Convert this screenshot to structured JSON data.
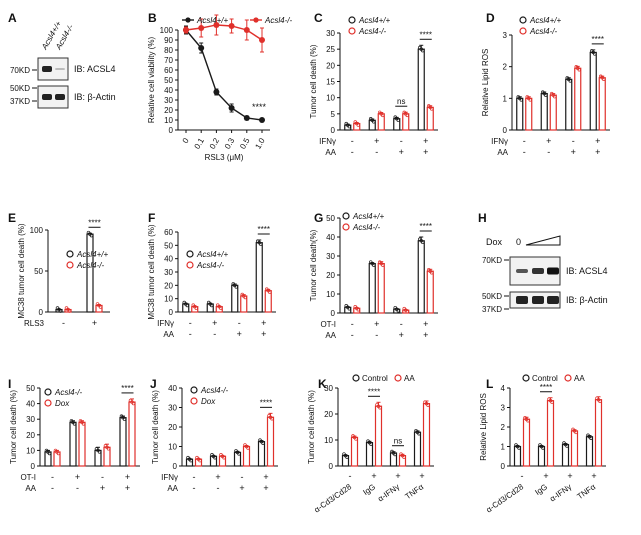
{
  "colors": {
    "black": "#1a1a1a",
    "red": "#e0302b",
    "gray": "#666666"
  },
  "figure": {
    "panels": {
      "A": {
        "letter": "A",
        "lanes": [
          "Acsl4+/+",
          "Acsl4-/-"
        ],
        "markers": [
          "70KD",
          "50KD",
          "37KD"
        ],
        "blots": [
          "IB: ACSL4",
          "IB: β-Actin"
        ]
      },
      "H": {
        "letter": "H",
        "dox_label": "Dox",
        "dox_zero": "0",
        "markers": [
          "70KD",
          "50KD",
          "37KD"
        ],
        "blots": [
          "IB: ACSL4",
          "IB: β-Actin"
        ]
      }
    }
  },
  "chart_data": [
    {
      "id": "B",
      "letter": "B",
      "type": "line",
      "ylabel": "Relative cell viability (%)",
      "xlabel": "RSL3 (μM)",
      "ylim": [
        0,
        100
      ],
      "yticks": [
        0,
        10,
        20,
        30,
        40,
        50,
        60,
        70,
        80,
        90,
        100
      ],
      "categories": [
        "0",
        "0.1",
        "0.2",
        "0.3",
        "0.5",
        "1.0"
      ],
      "legend": [
        "Acsl4+/+",
        "Acsl4-/-"
      ],
      "series": [
        {
          "name": "Acsl4+/+",
          "color": "black",
          "values": [
            100,
            82,
            38,
            22,
            12,
            10
          ],
          "err": [
            4,
            5,
            3,
            4,
            2,
            1
          ]
        },
        {
          "name": "Acsl4-/-",
          "color": "red",
          "values": [
            100,
            102,
            105,
            104,
            100,
            90
          ],
          "err": [
            3,
            9,
            10,
            7,
            10,
            12
          ]
        }
      ],
      "sig": "****"
    },
    {
      "id": "C",
      "letter": "C",
      "type": "bar",
      "ylabel": "Tumor cell death (%)",
      "ylim": [
        0,
        30
      ],
      "yticks": [
        0,
        5,
        10,
        15,
        20,
        25,
        30
      ],
      "legend": [
        "Acsl4+/+",
        "Acsl4-/-"
      ],
      "conditions": [
        {
          "label": "IFNγ",
          "values": [
            "-",
            "+",
            "-",
            "+"
          ]
        },
        {
          "label": "AA",
          "values": [
            "-",
            "-",
            "+",
            "+"
          ]
        }
      ],
      "series": [
        {
          "name": "Acsl4+/+",
          "color": "black",
          "values": [
            1.5,
            3,
            3.5,
            25
          ],
          "err": [
            0.3,
            0.4,
            0.4,
            1.2
          ]
        },
        {
          "name": "Acsl4-/-",
          "color": "red",
          "values": [
            2,
            5,
            5,
            7
          ],
          "err": [
            0.3,
            0.4,
            0.5,
            0.5
          ]
        }
      ],
      "annotations": [
        {
          "group": 2,
          "text": "ns"
        },
        {
          "group": 3,
          "text": "****"
        }
      ]
    },
    {
      "id": "D",
      "letter": "D",
      "type": "bar",
      "ylabel": "Relative Lipid ROS",
      "ylim": [
        0,
        3
      ],
      "yticks": [
        0,
        1,
        2,
        3
      ],
      "legend": [
        "Acsl4+/+",
        "Acsl4-/-"
      ],
      "conditions": [
        {
          "label": "IFNγ",
          "values": [
            "-",
            "+",
            "-",
            "+"
          ]
        },
        {
          "label": "AA",
          "values": [
            "-",
            "-",
            "+",
            "+"
          ]
        }
      ],
      "series": [
        {
          "name": "Acsl4+/+",
          "color": "black",
          "values": [
            1,
            1.15,
            1.6,
            2.45
          ],
          "err": [
            0.05,
            0.05,
            0.05,
            0.08
          ]
        },
        {
          "name": "Acsl4-/-",
          "color": "red",
          "values": [
            1,
            1.1,
            1.95,
            1.65
          ],
          "err": [
            0.05,
            0.05,
            0.06,
            0.05
          ]
        }
      ],
      "annotations": [
        {
          "group": 3,
          "text": "****"
        }
      ]
    },
    {
      "id": "E",
      "letter": "E",
      "type": "bar",
      "ylabel": "MC38 tumor cell death (%)",
      "ylim": [
        0,
        100
      ],
      "yticks": [
        0,
        50,
        100
      ],
      "legend": [
        "Acsl4+/+",
        "Acsl4-/-"
      ],
      "conditions": [
        {
          "label": "RLS3",
          "values": [
            "-",
            "+"
          ]
        }
      ],
      "series": [
        {
          "name": "Acsl4+/+",
          "color": "black",
          "values": [
            3,
            95
          ],
          "err": [
            0.5,
            1
          ]
        },
        {
          "name": "Acsl4-/-",
          "color": "red",
          "values": [
            3,
            8
          ],
          "err": [
            0.5,
            1
          ]
        }
      ],
      "annotations": [
        {
          "group": 1,
          "text": "****"
        }
      ]
    },
    {
      "id": "F",
      "letter": "F",
      "type": "bar",
      "ylabel": "MC38 tumor cell death (%)",
      "ylim": [
        0,
        60
      ],
      "yticks": [
        0,
        10,
        20,
        30,
        40,
        50,
        60
      ],
      "legend": [
        "Acsl4+/+",
        "Acsl4-/-"
      ],
      "conditions": [
        {
          "label": "IFNγ",
          "values": [
            "-",
            "+",
            "-",
            "+"
          ]
        },
        {
          "label": "AA",
          "values": [
            "-",
            "-",
            "+",
            "+"
          ]
        }
      ],
      "series": [
        {
          "name": "Acsl4+/+",
          "color": "black",
          "values": [
            6,
            6,
            20,
            52
          ],
          "err": [
            0.5,
            0.5,
            1,
            2
          ]
        },
        {
          "name": "Acsl4-/-",
          "color": "red",
          "values": [
            4,
            4,
            12,
            16
          ],
          "err": [
            0.5,
            0.5,
            1,
            1
          ]
        }
      ],
      "annotations": [
        {
          "group": 3,
          "text": "****"
        }
      ]
    },
    {
      "id": "G",
      "letter": "G",
      "type": "bar",
      "ylabel": "Tumor cell death(%)",
      "ylim": [
        0,
        50
      ],
      "yticks": [
        0,
        10,
        20,
        30,
        40,
        50
      ],
      "legend": [
        "Acsl4+/+",
        "Acsl4-/-"
      ],
      "conditions": [
        {
          "label": "OT-I",
          "values": [
            "-",
            "+",
            "-",
            "+"
          ]
        },
        {
          "label": "AA",
          "values": [
            "-",
            "-",
            "+",
            "+"
          ]
        }
      ],
      "series": [
        {
          "name": "Acsl4+/+",
          "color": "black",
          "values": [
            3,
            26,
            2,
            38
          ],
          "err": [
            0.3,
            0.5,
            0.3,
            2
          ]
        },
        {
          "name": "Acsl4-/-",
          "color": "red",
          "values": [
            2.5,
            26,
            1.5,
            22
          ],
          "err": [
            0.3,
            1,
            0.3,
            1
          ]
        }
      ],
      "annotations": [
        {
          "group": 3,
          "text": "****"
        }
      ]
    },
    {
      "id": "I",
      "letter": "I",
      "type": "bar",
      "ylabel": "Tumor cell death (%)",
      "ylim": [
        0,
        50
      ],
      "yticks": [
        0,
        10,
        20,
        30,
        40,
        50
      ],
      "legend": [
        "Acsl4-/-",
        "Dox"
      ],
      "conditions": [
        {
          "label": "OT-I",
          "values": [
            "-",
            "+",
            "-",
            "+"
          ]
        },
        {
          "label": "AA",
          "values": [
            "-",
            "-",
            "+",
            "+"
          ]
        }
      ],
      "series": [
        {
          "name": "Acsl4-/-",
          "color": "black",
          "values": [
            9,
            28,
            10,
            31
          ],
          "err": [
            1,
            1,
            2,
            1
          ]
        },
        {
          "name": "Dox",
          "color": "red",
          "values": [
            9,
            28,
            12,
            41
          ],
          "err": [
            1,
            1,
            2,
            2
          ]
        }
      ],
      "annotations": [
        {
          "group": 3,
          "text": "****"
        }
      ]
    },
    {
      "id": "J",
      "letter": "J",
      "type": "bar",
      "ylabel": "Tumor cell death (%)",
      "ylim": [
        0,
        40
      ],
      "yticks": [
        0,
        10,
        20,
        30,
        40
      ],
      "legend": [
        "Acsl4-/-",
        "Dox"
      ],
      "conditions": [
        {
          "label": "IFNγ",
          "values": [
            "-",
            "+",
            "-",
            "+"
          ]
        },
        {
          "label": "AA",
          "values": [
            "-",
            "-",
            "+",
            "+"
          ]
        }
      ],
      "series": [
        {
          "name": "Acsl4-/-",
          "color": "black",
          "values": [
            3.5,
            5,
            7,
            12.5
          ],
          "err": [
            0.3,
            0.3,
            0.5,
            0.5
          ]
        },
        {
          "name": "Dox",
          "color": "red",
          "values": [
            3.5,
            5,
            10,
            25
          ],
          "err": [
            0.3,
            0.3,
            0.5,
            2
          ]
        }
      ],
      "annotations": [
        {
          "group": 3,
          "text": "****"
        }
      ]
    },
    {
      "id": "K",
      "letter": "K",
      "type": "bar",
      "ylabel": "Tumor cell death (%)",
      "ylim": [
        0,
        30
      ],
      "yticks": [
        0,
        10,
        20,
        30
      ],
      "legend": [
        "Control",
        "AA"
      ],
      "categories": [
        "α-Cd3/Cd28",
        "IgG",
        "α-IFNγ",
        "TNFα"
      ],
      "pm_row": [
        "-",
        "+",
        "+",
        "+"
      ],
      "series": [
        {
          "name": "Control",
          "color": "black",
          "values": [
            4,
            9,
            5,
            13
          ],
          "err": [
            0.3,
            0.5,
            0.5,
            0.5
          ]
        },
        {
          "name": "AA",
          "color": "red",
          "values": [
            11,
            23,
            4,
            24
          ],
          "err": [
            0.5,
            1.5,
            0.5,
            1
          ]
        }
      ],
      "annotations": [
        {
          "group": 1,
          "text": "****"
        },
        {
          "group": 2,
          "text": "ns"
        }
      ]
    },
    {
      "id": "L",
      "letter": "L",
      "type": "bar",
      "ylabel": "Relative Lipid ROS",
      "ylim": [
        0,
        4
      ],
      "yticks": [
        0,
        1,
        2,
        3,
        4
      ],
      "legend": [
        "Control",
        "AA"
      ],
      "categories": [
        "α-Cd3/Cd28",
        "IgG",
        "α-IFNγ",
        "TNFα"
      ],
      "pm_row": [
        "-",
        "+",
        "+",
        "+"
      ],
      "series": [
        {
          "name": "Control",
          "color": "black",
          "values": [
            1,
            1,
            1.1,
            1.5
          ],
          "err": [
            0.05,
            0.05,
            0.05,
            0.06
          ]
        },
        {
          "name": "AA",
          "color": "red",
          "values": [
            2.4,
            3.35,
            1.8,
            3.4
          ],
          "err": [
            0.1,
            0.15,
            0.06,
            0.15
          ]
        }
      ],
      "annotations": [
        {
          "group": 1,
          "text": "****"
        }
      ]
    }
  ]
}
